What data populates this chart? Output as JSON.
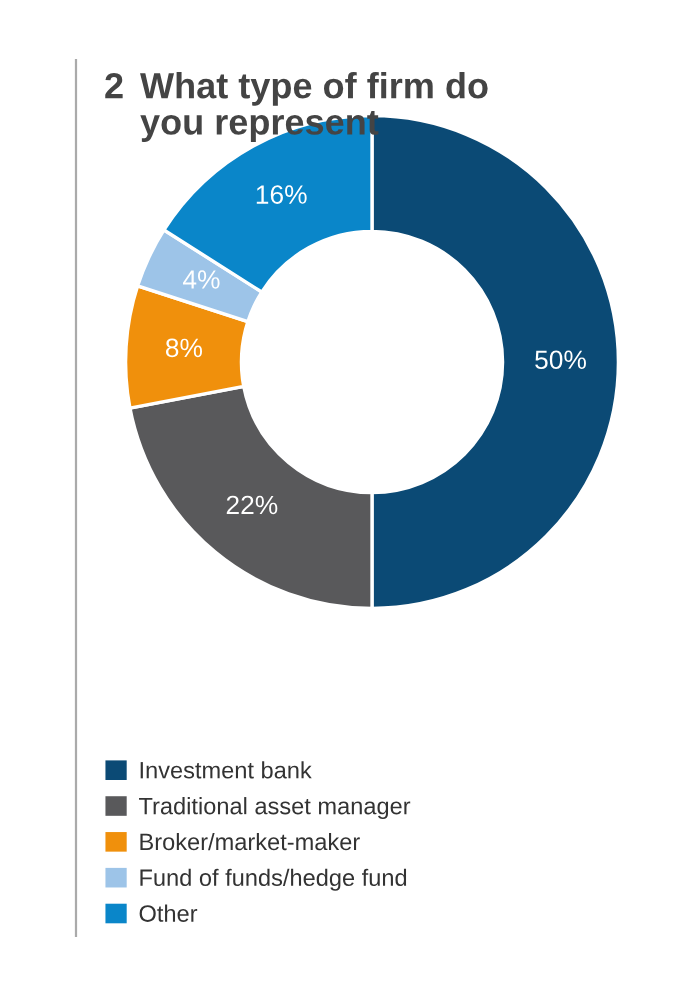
{
  "chart_data": {
    "type": "donut",
    "title": "2 What type of firm do\nyou represent",
    "categories": [
      "Investment bank",
      "Traditional asset manager",
      "Broker/market-maker",
      "Fund of funds/hedge fund",
      "Other"
    ],
    "values": [
      50,
      22,
      8,
      4,
      16
    ],
    "colors": [
      "#0b4a75",
      "#59595b",
      "#f0900c",
      "#9dc4e8",
      "#0a86c9"
    ],
    "value_labels": [
      "50%",
      "22%",
      "8%",
      "4%",
      "16%"
    ],
    "legend": "bottom left"
  }
}
